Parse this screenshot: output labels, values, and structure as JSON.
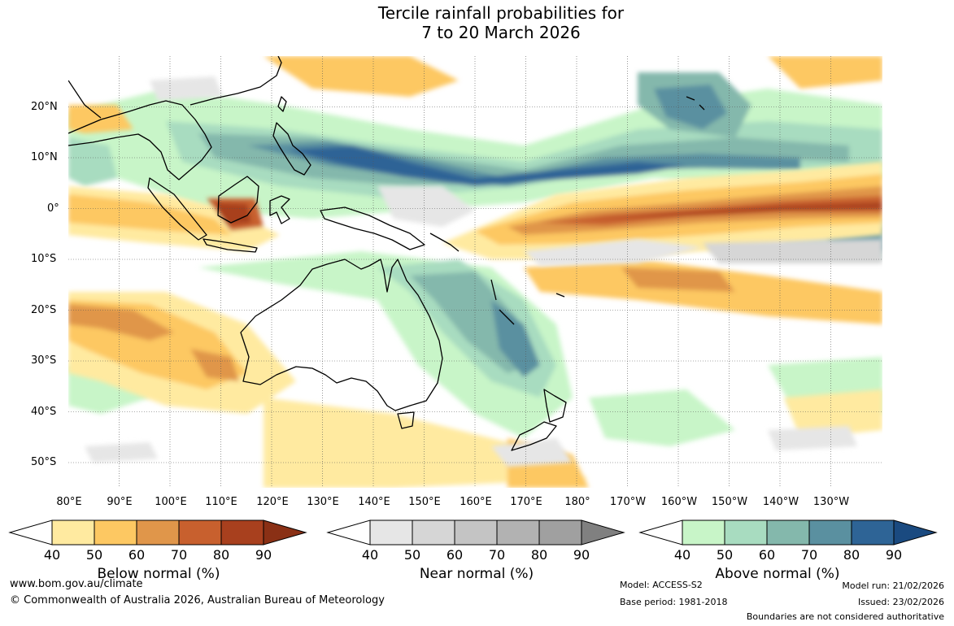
{
  "title": {
    "line1": "Tercile rainfall probabilities for",
    "line2": "7 to 20 March 2026"
  },
  "lat_labels": [
    "20°N",
    "10°N",
    "0°",
    "10°S",
    "20°S",
    "30°S",
    "40°S",
    "50°S"
  ],
  "lon_labels": [
    "80°E",
    "90°E",
    "100°E",
    "110°E",
    "120°E",
    "130°E",
    "140°E",
    "150°E",
    "160°E",
    "170°E",
    "180°",
    "170°W",
    "160°W",
    "150°W",
    "140°W",
    "130°W"
  ],
  "colorbars": [
    {
      "label": "Below normal (%)",
      "ticks": [
        "40",
        "50",
        "60",
        "70",
        "80",
        "90"
      ],
      "colors": [
        "#ffeaa0",
        "#fdc862",
        "#e0964a",
        "#c8602e",
        "#a8401e",
        "#8a3015"
      ]
    },
    {
      "label": "Near normal (%)",
      "ticks": [
        "40",
        "50",
        "60",
        "70",
        "80",
        "90"
      ],
      "colors": [
        "#e6e6e6",
        "#d6d6d6",
        "#c4c4c4",
        "#b2b2b2",
        "#a0a0a0",
        "#808080"
      ]
    },
    {
      "label": "Above normal (%)",
      "ticks": [
        "40",
        "50",
        "60",
        "70",
        "80",
        "90"
      ],
      "colors": [
        "#c8f5c8",
        "#a8dcc0",
        "#84b8ac",
        "#5a90a0",
        "#2e6496",
        "#1a4a80"
      ]
    }
  ],
  "footer": {
    "website": "www.bom.gov.au/climate",
    "copyright": "© Commonwealth of Australia 2026, Australian Bureau of Meteorology",
    "model": "Model: ACCESS-S2",
    "base_period": "Base period: 1981-2018",
    "model_run": "Model run: 21/02/2026",
    "issued": "Issued: 23/02/2026",
    "boundaries": "Boundaries are not considered authoritative"
  }
}
